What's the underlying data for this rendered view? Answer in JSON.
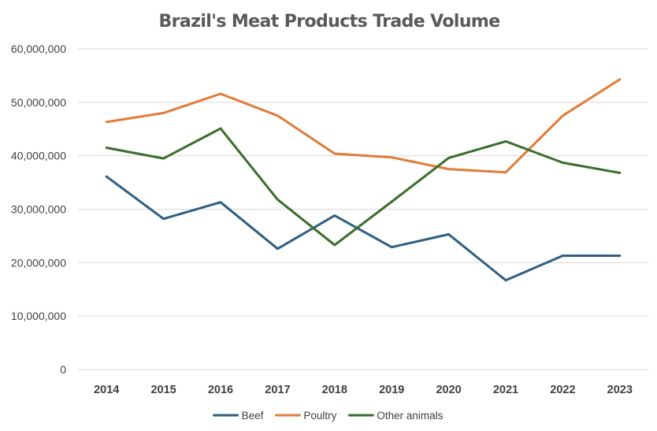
{
  "chart_data": {
    "type": "line",
    "title": "Brazil's Meat Products Trade Volume",
    "xlabel": "",
    "ylabel": "",
    "categories": [
      "2014",
      "2015",
      "2016",
      "2017",
      "2018",
      "2019",
      "2020",
      "2021",
      "2022",
      "2023"
    ],
    "ylim": [
      0,
      60000000
    ],
    "y_ticks": [
      0,
      10000000,
      20000000,
      30000000,
      40000000,
      50000000,
      60000000
    ],
    "y_tick_labels": [
      "0",
      "10,000,000",
      "20,000,000",
      "30,000,000",
      "40,000,000",
      "50,000,000",
      "60,000,000"
    ],
    "grid": true,
    "legend_position": "bottom",
    "series": [
      {
        "name": "Beef",
        "color": "#2e5f82",
        "values": [
          36100000,
          28200000,
          31300000,
          22600000,
          28800000,
          22900000,
          25300000,
          16700000,
          21300000,
          21300000
        ]
      },
      {
        "name": "Poultry",
        "color": "#e07b39",
        "values": [
          46300000,
          48000000,
          51600000,
          47500000,
          40400000,
          39700000,
          37500000,
          36900000,
          47500000,
          54300000
        ]
      },
      {
        "name": "Other animals",
        "color": "#3a6d2b",
        "values": [
          41500000,
          39500000,
          45100000,
          31800000,
          23300000,
          31400000,
          39600000,
          42700000,
          38700000,
          36800000
        ]
      }
    ]
  }
}
